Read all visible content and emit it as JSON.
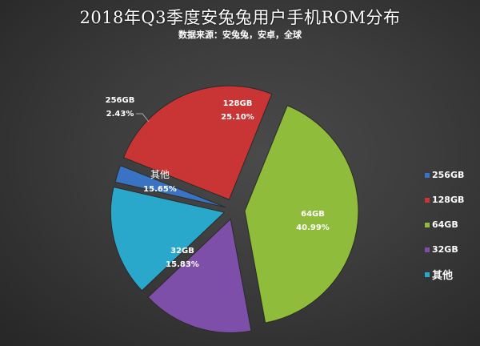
{
  "title": "2018年Q3季度安兔兔用户手机ROM分布",
  "subtitle": "数据来源：安兔兔，安卓，全球",
  "chart_data": {
    "type": "pie",
    "title": "2018年Q3季度安兔兔用户手机ROM分布",
    "subtitle": "数据来源：安兔兔，安卓，全球",
    "categories": [
      "256GB",
      "128GB",
      "64GB",
      "32GB",
      "其他"
    ],
    "values": [
      2.43,
      25.1,
      40.99,
      15.83,
      15.65
    ],
    "labels": [
      "2.43%",
      "25.10%",
      "40.99%",
      "15.83%",
      "15.65%"
    ],
    "colors": [
      "#3a72c4",
      "#c93535",
      "#8fbc3a",
      "#7d4fa8",
      "#2aa8cc"
    ],
    "exploded": true,
    "legend_position": "right"
  },
  "legend": [
    {
      "label": "256GB",
      "color": "#3a72c4"
    },
    {
      "label": "128GB",
      "color": "#c93535"
    },
    {
      "label": "64GB",
      "color": "#8fbc3a"
    },
    {
      "label": "32GB",
      "color": "#7d4fa8"
    },
    {
      "label": "其他",
      "color": "#2aa8cc"
    }
  ]
}
